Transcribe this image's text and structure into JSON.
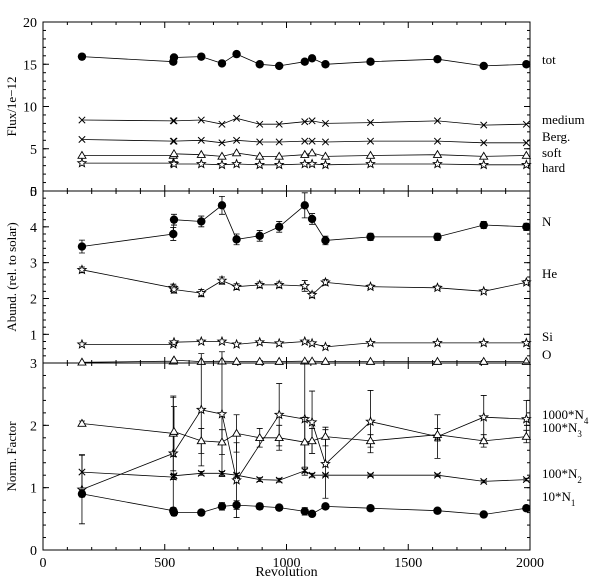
{
  "chart_data": {
    "type": "line",
    "xlabel": "Revolution",
    "xlim": [
      0,
      2000
    ],
    "xticks": [
      0,
      500,
      1000,
      1500,
      2000
    ],
    "panels": [
      {
        "ylabel": "Flux/1e−12",
        "ylim": [
          0,
          20
        ],
        "yticks": [
          0,
          5,
          10,
          15,
          20
        ],
        "series": [
          {
            "name": "tot",
            "marker": "filled-circle",
            "x": [
              160,
              535,
              538,
              650,
              735,
              795,
              890,
              970,
              1075,
              1105,
              1160,
              1345,
              1620,
              1810,
              1985
            ],
            "y": [
              15.9,
              15.3,
              15.8,
              15.9,
              15.1,
              16.2,
              15.0,
              14.8,
              15.3,
              15.7,
              15.0,
              15.3,
              15.6,
              14.8,
              15.0
            ]
          },
          {
            "name": "medium",
            "marker": "cross",
            "x": [
              160,
              535,
              538,
              650,
              735,
              795,
              890,
              970,
              1075,
              1105,
              1160,
              1345,
              1620,
              1810,
              1985
            ],
            "y": [
              8.4,
              8.3,
              8.3,
              8.4,
              7.9,
              8.6,
              7.9,
              7.9,
              8.2,
              8.3,
              8.0,
              8.1,
              8.3,
              7.8,
              7.9
            ]
          },
          {
            "name": "Berg.",
            "marker": "cross",
            "x": [
              160,
              535,
              538,
              650,
              735,
              795,
              890,
              970,
              1075,
              1105,
              1160,
              1345,
              1620,
              1810,
              1985
            ],
            "y": [
              6.1,
              5.9,
              5.9,
              6.0,
              5.7,
              6.0,
              5.8,
              5.8,
              5.9,
              5.9,
              5.8,
              5.9,
              5.9,
              5.7,
              5.7
            ]
          },
          {
            "name": "soft",
            "marker": "open-triangle",
            "x": [
              160,
              535,
              538,
              650,
              735,
              795,
              890,
              970,
              1075,
              1105,
              1160,
              1345,
              1620,
              1810,
              1985
            ],
            "y": [
              4.2,
              4.2,
              4.4,
              4.3,
              4.1,
              4.5,
              4.1,
              4.1,
              4.3,
              4.5,
              4.1,
              4.2,
              4.3,
              4.1,
              4.2
            ]
          },
          {
            "name": "hard",
            "marker": "open-star",
            "x": [
              160,
              535,
              538,
              650,
              735,
              795,
              890,
              970,
              1075,
              1105,
              1160,
              1345,
              1620,
              1810,
              1985
            ],
            "y": [
              3.3,
              3.3,
              3.2,
              3.2,
              3.1,
              3.2,
              3.1,
              3.1,
              3.2,
              3.2,
              3.1,
              3.2,
              3.2,
              3.1,
              3.1
            ]
          }
        ]
      },
      {
        "ylabel": "Abund. (rel. to solar)",
        "ylim": [
          0.2,
          5
        ],
        "yticks": [
          1,
          2,
          3,
          4,
          5
        ],
        "series": [
          {
            "name": "N",
            "marker": "filled-circle",
            "x": [
              160,
              535,
              538,
              650,
              735,
              795,
              890,
              970,
              1075,
              1105,
              1160,
              1345,
              1620,
              1810,
              1985
            ],
            "y": [
              3.45,
              3.8,
              4.2,
              4.15,
              4.6,
              3.65,
              3.75,
              4.0,
              4.6,
              4.22,
              3.62,
              3.72,
              3.72,
              4.05,
              4.0
            ],
            "err": [
              0.18,
              0.18,
              0.15,
              0.15,
              0.25,
              0.15,
              0.15,
              0.15,
              0.35,
              0.15,
              0.12,
              0.1,
              0.1,
              0.1,
              0.1
            ]
          },
          {
            "name": "He",
            "marker": "open-star",
            "x": [
              160,
              535,
              538,
              650,
              735,
              795,
              890,
              970,
              1075,
              1105,
              1160,
              1345,
              1620,
              1810,
              1985
            ],
            "y": [
              2.8,
              2.3,
              2.25,
              2.15,
              2.5,
              2.33,
              2.38,
              2.38,
              2.35,
              2.1,
              2.45,
              2.33,
              2.3,
              2.2,
              2.45
            ],
            "err": [
              0.08,
              0.1,
              0.1,
              0.1,
              0.1,
              0.08,
              0.08,
              0.08,
              0.15,
              0.08,
              0.08,
              0.05,
              0.05,
              0.05,
              0.05
            ]
          },
          {
            "name": "Si",
            "marker": "open-star",
            "x": [
              160,
              535,
              538,
              650,
              735,
              795,
              890,
              970,
              1075,
              1105,
              1160,
              1345,
              1620,
              1810,
              1985
            ],
            "y": [
              0.72,
              0.72,
              0.78,
              0.8,
              0.8,
              0.72,
              0.78,
              0.75,
              0.8,
              0.75,
              0.65,
              0.76,
              0.76,
              0.76,
              0.76
            ]
          },
          {
            "name": "O",
            "marker": "open-triangle",
            "x": [
              160,
              535,
              538,
              650,
              735,
              795,
              890,
              970,
              1075,
              1105,
              1160,
              1345,
              1620,
              1810,
              1985
            ],
            "y": [
              0.22,
              0.25,
              0.28,
              0.24,
              0.25,
              0.24,
              0.24,
              0.24,
              0.25,
              0.25,
              0.24,
              0.24,
              0.24,
              0.24,
              0.24
            ]
          }
        ]
      },
      {
        "ylabel": "Norm. Factor",
        "ylim": [
          0,
          3
        ],
        "yticks": [
          0,
          1,
          2,
          3
        ],
        "series": [
          {
            "name": "1000*N4",
            "label_base": "1000*N",
            "label_sub": "4",
            "marker": "open-star",
            "x": [
              160,
              535,
              650,
              735,
              795,
              970,
              1075,
              1105,
              1160,
              1345,
              1620,
              1810,
              1985
            ],
            "y": [
              0.97,
              1.55,
              2.25,
              2.18,
              1.12,
              2.17,
              2.1,
              2.05,
              1.38,
              2.06,
              1.82,
              2.13,
              2.1
            ],
            "err": [
              0.55,
              0.9,
              0.9,
              1.0,
              0.6,
              0.5,
              0.9,
              0.5,
              0.55,
              0.5,
              0.35,
              0.35,
              0.3
            ]
          },
          {
            "name": "100*N3",
            "label_base": "100*N",
            "label_sub": "3",
            "marker": "open-triangle",
            "x": [
              160,
              535,
              538,
              650,
              735,
              795,
              890,
              970,
              1075,
              1105,
              1160,
              1345,
              1620,
              1810,
              1985
            ],
            "y": [
              2.03,
              1.87,
              1.9,
              1.75,
              1.73,
              1.87,
              1.8,
              1.8,
              1.73,
              1.75,
              1.82,
              1.75,
              1.85,
              1.75,
              1.82
            ],
            "err": [
              0.04,
              0.6,
              0.4,
              0.2,
              0.2,
              0.3,
              0.15,
              0.2,
              0.4,
              0.2,
              0.15,
              0.1,
              0.1,
              0.1,
              0.1
            ]
          },
          {
            "name": "100*N2",
            "label_base": "100*N",
            "label_sub": "2",
            "marker": "cross",
            "x": [
              160,
              535,
              538,
              650,
              735,
              795,
              890,
              970,
              1075,
              1105,
              1160,
              1345,
              1620,
              1810,
              1985
            ],
            "y": [
              1.25,
              1.17,
              1.19,
              1.23,
              1.23,
              1.2,
              1.13,
              1.12,
              1.27,
              1.2,
              1.2,
              1.2,
              1.2,
              1.1,
              1.13
            ],
            "err": [
              0.28,
              0.04,
              0.03,
              0.03,
              0.03,
              0.03,
              0.03,
              0.03,
              0.03,
              0.03,
              0.02,
              0.02,
              0.02,
              0.02,
              0.02
            ]
          },
          {
            "name": "10*N1",
            "label_base": "10*N",
            "label_sub": "1",
            "marker": "filled-circle",
            "x": [
              160,
              535,
              538,
              650,
              735,
              795,
              890,
              970,
              1075,
              1105,
              1160,
              1345,
              1620,
              1810,
              1985
            ],
            "y": [
              0.9,
              0.63,
              0.6,
              0.6,
              0.7,
              0.72,
              0.7,
              0.68,
              0.62,
              0.58,
              0.7,
              0.67,
              0.63,
              0.57,
              0.67
            ],
            "err": [
              0.05,
              0.05,
              0.05,
              0.03,
              0.06,
              0.07,
              0.05,
              0.04,
              0.06,
              0.04,
              0.04,
              0.03,
              0.03,
              0.03,
              0.03
            ]
          }
        ]
      }
    ]
  }
}
